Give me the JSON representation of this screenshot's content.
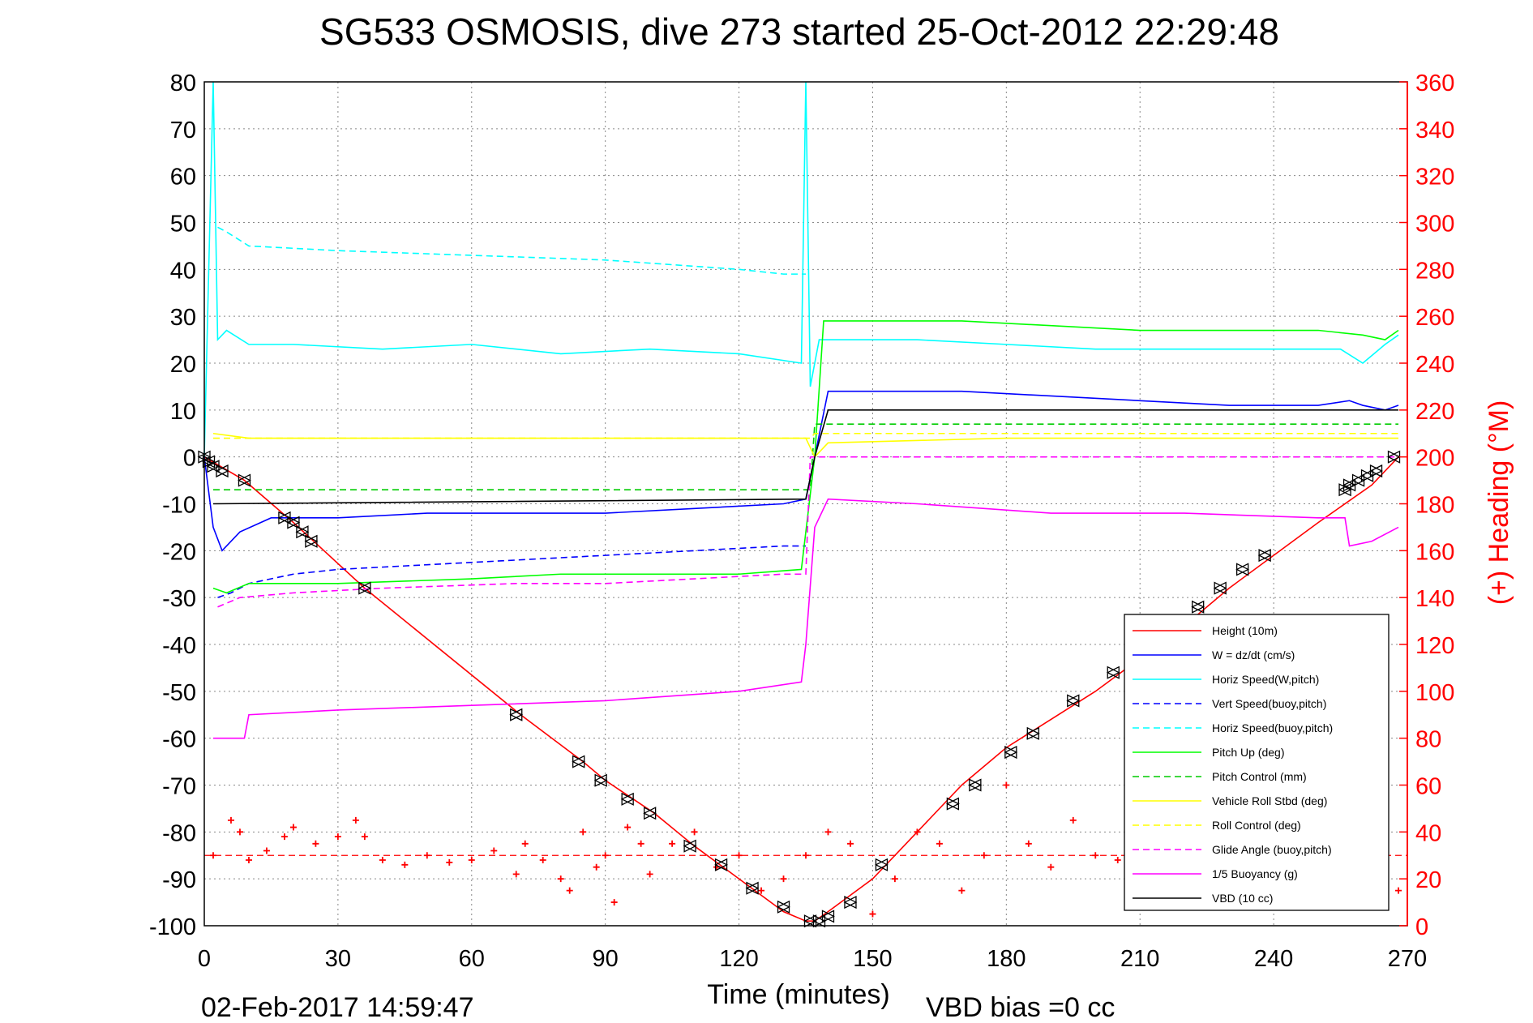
{
  "chart_data": {
    "type": "line",
    "title": "SG533 OSMOSIS, dive 273 started 25-Oct-2012 22:29:48",
    "xlabel": "Time (minutes)",
    "ylabel": "",
    "y2label": "(+) Heading (°M)",
    "xlim": [
      0,
      270
    ],
    "ylim": [
      -100,
      80
    ],
    "y2lim": [
      0,
      360
    ],
    "xticks": [
      "0",
      "30",
      "60",
      "90",
      "120",
      "150",
      "180",
      "210",
      "240",
      "270"
    ],
    "yticks": [
      "80",
      "70",
      "60",
      "50",
      "40",
      "30",
      "20",
      "10",
      "0",
      "-10",
      "-20",
      "-30",
      "-40",
      "-50",
      "-60",
      "-70",
      "-80",
      "-90",
      "-100"
    ],
    "y2ticks": [
      "360",
      "340",
      "320",
      "300",
      "280",
      "260",
      "240",
      "220",
      "200",
      "180",
      "160",
      "140",
      "120",
      "100",
      "80",
      "60",
      "40",
      "20",
      "0"
    ],
    "grid": true,
    "legend_position": "lower-right",
    "footer_left": "02-Feb-2017 14:59:47",
    "footer_right": "VBD bias =0 cc",
    "colors": {
      "height": "#ff0000",
      "w": "#0000ff",
      "horiz_w": "#00ffff",
      "vert_buoy": "#0000ff",
      "horiz_buoy": "#00ffff",
      "pitch": "#00ff00",
      "pitch_ctrl": "#00cc00",
      "roll": "#ffff00",
      "roll_ctrl": "#ffff00",
      "glide": "#ff00ff",
      "buoyancy": "#ff00ff",
      "vbd": "#000000",
      "heading": "#ff0000"
    },
    "series": [
      {
        "name": "Height (10m)",
        "style": "solid",
        "color": "#ff0000",
        "x": [
          0,
          9,
          20,
          36,
          71,
          85,
          90,
          101,
          110,
          120,
          130,
          135,
          137,
          140,
          150,
          160,
          170,
          180,
          190,
          200,
          210,
          220,
          230,
          240,
          250,
          262,
          268
        ],
        "y": [
          0,
          -5,
          -14,
          -28,
          -55,
          -65,
          -69,
          -76,
          -83,
          -90,
          -97,
          -99,
          -99,
          -97,
          -90,
          -80,
          -70,
          -62,
          -56,
          -50,
          -43,
          -36,
          -28,
          -21,
          -14,
          -6,
          0
        ]
      },
      {
        "name": "W = dz/dt (cm/s)",
        "style": "solid",
        "color": "#0000ff",
        "x": [
          0,
          2,
          4,
          8,
          15,
          30,
          50,
          70,
          90,
          110,
          130,
          135,
          137,
          140,
          150,
          170,
          190,
          210,
          230,
          250,
          257,
          260,
          265,
          268
        ],
        "y": [
          0,
          -15,
          -20,
          -16,
          -13,
          -13,
          -12,
          -12,
          -12,
          -11,
          -10,
          -9,
          0,
          14,
          14,
          14,
          13,
          12,
          11,
          11,
          12,
          11,
          10,
          11
        ]
      },
      {
        "name": "Horiz Speed(W,pitch)",
        "style": "solid",
        "color": "#00ffff",
        "x": [
          0,
          2,
          3,
          5,
          10,
          20,
          40,
          60,
          80,
          100,
          120,
          134,
          135,
          136,
          138,
          140,
          160,
          180,
          200,
          220,
          240,
          255,
          260,
          265,
          268
        ],
        "y": [
          0,
          80,
          25,
          27,
          24,
          24,
          23,
          24,
          22,
          23,
          22,
          20,
          80,
          15,
          25,
          25,
          25,
          24,
          23,
          23,
          23,
          23,
          20,
          24,
          26
        ]
      },
      {
        "name": "Vert Speed(buoy,pitch)",
        "style": "dashed",
        "color": "#0000ff",
        "x": [
          3,
          6,
          10,
          20,
          30,
          50,
          70,
          90,
          110,
          130,
          135
        ],
        "y": [
          -30,
          -29,
          -27,
          -25,
          -24,
          -23,
          -22,
          -21,
          -20,
          -19,
          -19
        ]
      },
      {
        "name": "Horiz Speed(buoy,pitch)",
        "style": "dashed",
        "color": "#00ffff",
        "x": [
          3,
          5,
          10,
          30,
          60,
          90,
          120,
          130,
          135
        ],
        "y": [
          49,
          48,
          45,
          44,
          43,
          42,
          40,
          39,
          39
        ]
      },
      {
        "name": "Pitch Up (deg)",
        "style": "solid",
        "color": "#00ff00",
        "x": [
          2,
          5,
          10,
          30,
          60,
          80,
          100,
          120,
          134,
          137,
          139,
          150,
          170,
          190,
          210,
          230,
          250,
          260,
          265,
          268
        ],
        "y": [
          -28,
          -29,
          -27,
          -27,
          -26,
          -25,
          -25,
          -25,
          -24,
          0,
          29,
          29,
          29,
          28,
          27,
          27,
          27,
          26,
          25,
          27
        ]
      },
      {
        "name": "Pitch Control (mm)",
        "style": "dashed",
        "color": "#00cc00",
        "x": [
          2,
          136,
          137,
          268
        ],
        "y": [
          -7,
          -7,
          7,
          7
        ]
      },
      {
        "name": "Vehicle Roll Stbd (deg)",
        "style": "solid",
        "color": "#ffff00",
        "x": [
          2,
          10,
          30,
          60,
          90,
          120,
          135,
          137,
          140,
          180,
          220,
          260,
          268
        ],
        "y": [
          5,
          4,
          4,
          4,
          4,
          4,
          4,
          0,
          3,
          4,
          4,
          4,
          4
        ]
      },
      {
        "name": "Roll Control (deg)",
        "style": "dashed",
        "color": "#ffff00",
        "x": [
          2,
          136,
          137,
          268
        ],
        "y": [
          4,
          4,
          5,
          5
        ]
      },
      {
        "name": "Glide Angle (buoy,pitch)",
        "style": "dashed",
        "color": "#ff00ff",
        "x": [
          3,
          8,
          20,
          40,
          70,
          90,
          110,
          130,
          135,
          136,
          268
        ],
        "y": [
          -32,
          -30,
          -29,
          -28,
          -27,
          -27,
          -26,
          -25,
          -25,
          0,
          0
        ]
      },
      {
        "name": "1/5 Buoyancy (g)",
        "style": "solid",
        "color": "#ff00ff",
        "x": [
          2,
          9,
          10,
          30,
          60,
          90,
          120,
          134,
          135,
          137,
          140,
          160,
          190,
          220,
          250,
          256,
          257,
          262,
          268
        ],
        "y": [
          -60,
          -60,
          -55,
          -54,
          -53,
          -52,
          -50,
          -48,
          -40,
          -15,
          -9,
          -10,
          -12,
          -12,
          -13,
          -13,
          -19,
          -18,
          -15
        ]
      },
      {
        "name": "VBD (10 cc)",
        "style": "solid",
        "color": "#000000",
        "x": [
          2,
          135,
          137,
          140,
          268
        ],
        "y": [
          -10,
          -9,
          0,
          10,
          10
        ]
      }
    ],
    "heading_series": {
      "name": "Heading",
      "marker": "+",
      "color": "#ff0000",
      "axis": "right",
      "mean": 30,
      "x": [
        2,
        6,
        8,
        10,
        14,
        18,
        20,
        25,
        30,
        34,
        36,
        40,
        45,
        50,
        55,
        60,
        65,
        70,
        72,
        76,
        80,
        82,
        85,
        88,
        90,
        92,
        95,
        98,
        100,
        105,
        110,
        115,
        120,
        125,
        130,
        135,
        140,
        145,
        150,
        155,
        160,
        165,
        170,
        175,
        180,
        185,
        190,
        195,
        200,
        205,
        210,
        215,
        220,
        230,
        240,
        250,
        260,
        268
      ],
      "y": [
        30,
        45,
        40,
        28,
        32,
        38,
        42,
        35,
        38,
        45,
        38,
        28,
        26,
        30,
        27,
        28,
        32,
        22,
        35,
        28,
        20,
        15,
        40,
        25,
        30,
        10,
        42,
        35,
        22,
        35,
        40,
        25,
        30,
        15,
        20,
        30,
        40,
        35,
        5,
        20,
        40,
        35,
        15,
        30,
        60,
        35,
        25,
        45,
        30,
        28,
        40,
        25,
        35,
        30,
        35,
        40,
        20,
        15
      ]
    }
  },
  "markers": {
    "x": [
      0,
      1,
      2,
      4,
      9,
      18,
      20,
      22,
      24,
      36,
      70,
      84,
      89,
      95,
      100,
      109,
      116,
      123,
      130,
      136,
      138,
      140,
      145,
      152,
      168,
      173,
      181,
      186,
      195,
      204,
      217,
      223,
      228,
      233,
      238,
      256,
      257,
      259,
      261,
      263,
      267
    ],
    "y": [
      0,
      -1,
      -2,
      -3,
      -5,
      -13,
      -14,
      -16,
      -18,
      -28,
      -55,
      -65,
      -69,
      -73,
      -76,
      -83,
      -87,
      -92,
      -96,
      -99,
      -99,
      -98,
      -95,
      -87,
      -74,
      -70,
      -63,
      -59,
      -52,
      -46,
      -36,
      -32,
      -28,
      -24,
      -21,
      -7,
      -6,
      -5,
      -4,
      -3,
      0
    ]
  }
}
